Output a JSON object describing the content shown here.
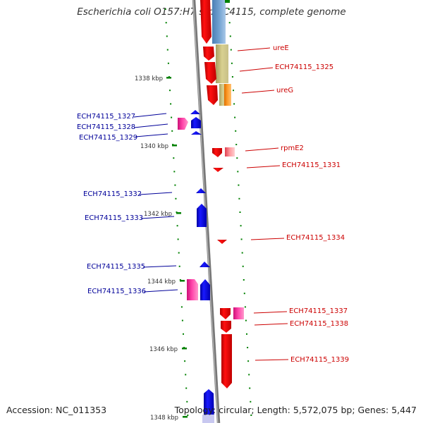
{
  "title": "Escherichia coli O157:H7 str. EC4115, complete genome",
  "footer": {
    "accession": "Accession: NC_011353",
    "topology": "Topology: circular; Length: 5,572,075 bp; Genes: 5,447"
  },
  "colors": {
    "forward_gene": "#ff0000",
    "reverse_gene": "#0000ff",
    "label_forward": "#cc0000",
    "label_reverse": "#000099",
    "ticks": "#008000",
    "backbone": "#888888",
    "pink_feature": "#ff3399"
  },
  "ticks": [
    "1338 kbp",
    "1340 kbp",
    "1342 kbp",
    "1344 kbp",
    "1346 kbp",
    "1348 kbp"
  ],
  "labels_left": [
    "ECH74115_1327",
    "ECH74115_1328",
    "ECH74115_1329",
    "ECH74115_1332",
    "ECH74115_1333",
    "ECH74115_1335",
    "ECH74115_1336"
  ],
  "labels_right": [
    "ureE",
    "ECH74115_1325",
    "ureG",
    "rpmE2",
    "ECH74115_1331",
    "ECH74115_1334",
    "ECH74115_1337",
    "ECH74115_1338",
    "ECH74115_1339"
  ]
}
